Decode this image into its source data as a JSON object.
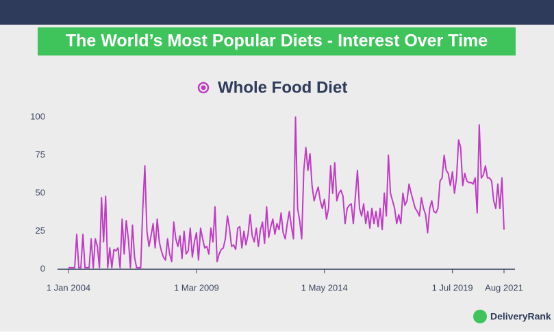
{
  "header": {
    "title": "The World’s Most Popular Diets - Interest Over Time",
    "brand": "DeliveryRank"
  },
  "chart_data": {
    "type": "line",
    "x": [
      "2004-01",
      "2004-02",
      "2004-03",
      "2004-04",
      "2004-05",
      "2004-06",
      "2004-07",
      "2004-08",
      "2004-09",
      "2004-10",
      "2004-11",
      "2004-12",
      "2005-01",
      "2005-02",
      "2005-03",
      "2005-04",
      "2005-05",
      "2005-06",
      "2005-07",
      "2005-08",
      "2005-09",
      "2005-10",
      "2005-11",
      "2005-12",
      "2006-01",
      "2006-02",
      "2006-03",
      "2006-04",
      "2006-05",
      "2006-06",
      "2006-07",
      "2006-08",
      "2006-09",
      "2006-10",
      "2006-11",
      "2006-12",
      "2007-01",
      "2007-02",
      "2007-03",
      "2007-04",
      "2007-05",
      "2007-06",
      "2007-07",
      "2007-08",
      "2007-09",
      "2007-10",
      "2007-11",
      "2007-12",
      "2008-01",
      "2008-02",
      "2008-03",
      "2008-04",
      "2008-05",
      "2008-06",
      "2008-07",
      "2008-08",
      "2008-09",
      "2008-10",
      "2008-11",
      "2008-12",
      "2009-01",
      "2009-02",
      "2009-03",
      "2009-04",
      "2009-05",
      "2009-06",
      "2009-07",
      "2009-08",
      "2009-09",
      "2009-10",
      "2009-11",
      "2009-12",
      "2010-01",
      "2010-02",
      "2010-03",
      "2010-04",
      "2010-05",
      "2010-06",
      "2010-07",
      "2010-08",
      "2010-09",
      "2010-10",
      "2010-11",
      "2010-12",
      "2011-01",
      "2011-02",
      "2011-03",
      "2011-04",
      "2011-05",
      "2011-06",
      "2011-07",
      "2011-08",
      "2011-09",
      "2011-10",
      "2011-11",
      "2011-12",
      "2012-01",
      "2012-02",
      "2012-03",
      "2012-04",
      "2012-05",
      "2012-06",
      "2012-07",
      "2012-08",
      "2012-09",
      "2012-10",
      "2012-11",
      "2012-12",
      "2013-01",
      "2013-02",
      "2013-03",
      "2013-04",
      "2013-05",
      "2013-06",
      "2013-07",
      "2013-08",
      "2013-09",
      "2013-10",
      "2013-11",
      "2013-12",
      "2014-01",
      "2014-02",
      "2014-03",
      "2014-04",
      "2014-05",
      "2014-06",
      "2014-07",
      "2014-08",
      "2014-09",
      "2014-10",
      "2014-11",
      "2014-12",
      "2015-01",
      "2015-02",
      "2015-03",
      "2015-04",
      "2015-05",
      "2015-06",
      "2015-07",
      "2015-08",
      "2015-09",
      "2015-10",
      "2015-11",
      "2015-12",
      "2016-01",
      "2016-02",
      "2016-03",
      "2016-04",
      "2016-05",
      "2016-06",
      "2016-07",
      "2016-08",
      "2016-09",
      "2016-10",
      "2016-11",
      "2016-12",
      "2017-01",
      "2017-02",
      "2017-03",
      "2017-04",
      "2017-05",
      "2017-06",
      "2017-07",
      "2017-08",
      "2017-09",
      "2017-10",
      "2017-11",
      "2017-12",
      "2018-01",
      "2018-02",
      "2018-03",
      "2018-04",
      "2018-05",
      "2018-06",
      "2018-07",
      "2018-08",
      "2018-09",
      "2018-10",
      "2018-11",
      "2018-12",
      "2019-01",
      "2019-02",
      "2019-03",
      "2019-04",
      "2019-05",
      "2019-06",
      "2019-07",
      "2019-08",
      "2019-09",
      "2019-10",
      "2019-11",
      "2019-12",
      "2020-01",
      "2020-02",
      "2020-03",
      "2020-04",
      "2020-05",
      "2020-06",
      "2020-07",
      "2020-08",
      "2020-09",
      "2020-10",
      "2020-11",
      "2020-12",
      "2021-01",
      "2021-02",
      "2021-03",
      "2021-04",
      "2021-05",
      "2021-06",
      "2021-07",
      "2021-08"
    ],
    "series": [
      {
        "name": "Whole Food Diet",
        "color": "#c03bc4",
        "values": [
          1,
          1,
          1,
          1,
          23,
          1,
          1,
          23,
          1,
          1,
          1,
          20,
          1,
          20,
          15,
          1,
          47,
          18,
          48,
          1,
          14,
          1,
          13,
          12,
          14,
          1,
          33,
          10,
          32,
          20,
          1,
          29,
          8,
          1,
          1,
          1,
          40,
          68,
          25,
          15,
          22,
          30,
          14,
          33,
          18,
          12,
          8,
          6,
          20,
          10,
          5,
          31,
          20,
          15,
          22,
          7,
          25,
          10,
          12,
          27,
          8,
          18,
          24,
          6,
          27,
          20,
          14,
          15,
          10,
          27,
          18,
          41,
          5,
          10,
          13,
          14,
          20,
          35,
          27,
          15,
          16,
          13,
          27,
          28,
          14,
          25,
          16,
          23,
          36,
          22,
          18,
          27,
          15,
          26,
          31,
          17,
          41,
          21,
          28,
          33,
          23,
          30,
          26,
          37,
          24,
          20,
          30,
          38,
          28,
          20,
          100,
          40,
          32,
          20,
          65,
          80,
          65,
          76,
          55,
          45,
          50,
          54,
          45,
          40,
          46,
          33,
          40,
          68,
          50,
          70,
          45,
          50,
          52,
          48,
          30,
          40,
          42,
          43,
          30,
          48,
          65,
          40,
          35,
          43,
          30,
          38,
          27,
          40,
          30,
          38,
          28,
          40,
          26,
          50,
          35,
          75,
          50,
          45,
          40,
          30,
          36,
          30,
          50,
          42,
          45,
          56,
          50,
          45,
          40,
          38,
          35,
          47,
          40,
          36,
          24,
          40,
          45,
          38,
          37,
          40,
          58,
          60,
          75,
          65,
          63,
          55,
          64,
          50,
          60,
          85,
          80,
          55,
          63,
          58,
          57,
          57,
          56,
          60,
          37,
          95,
          60,
          62,
          68,
          60,
          60,
          58,
          45,
          40,
          56,
          40,
          60,
          26
        ]
      }
    ],
    "xlim": [
      "2004-01",
      "2021-08"
    ],
    "xticks": [
      {
        "value": "2004-01",
        "label": "1 Jan 2004"
      },
      {
        "value": "2009-03",
        "label": "1 Mar 2009"
      },
      {
        "value": "2014-05",
        "label": "1 May 2014"
      },
      {
        "value": "2019-07",
        "label": "1 Jul 2019"
      },
      {
        "value": "2021-08",
        "label": "Aug 2021"
      }
    ],
    "ylim": [
      0,
      100
    ],
    "yticks": [
      0,
      25,
      50,
      75,
      100
    ]
  }
}
